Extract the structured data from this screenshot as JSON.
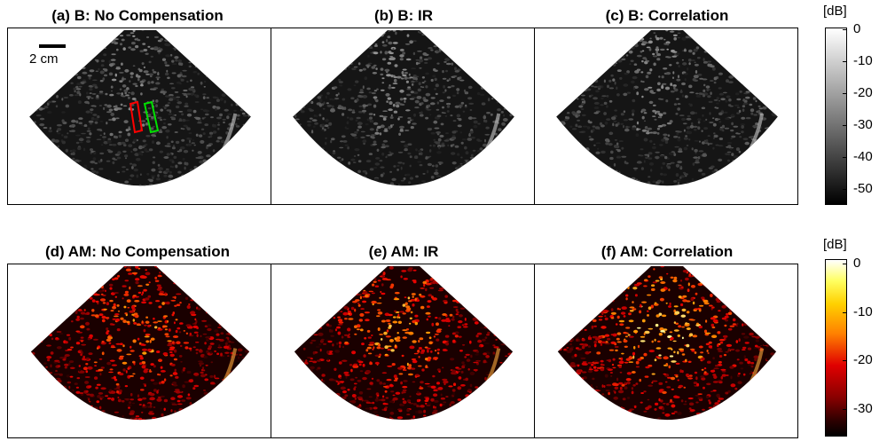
{
  "panels": [
    {
      "id": "a",
      "title": "(a) B: No Compensation",
      "mode": "B"
    },
    {
      "id": "b",
      "title": "(b) B: IR",
      "mode": "B"
    },
    {
      "id": "c",
      "title": "(c) B: Correlation",
      "mode": "B"
    },
    {
      "id": "d",
      "title": "(d) AM: No Compensation",
      "mode": "AM"
    },
    {
      "id": "e",
      "title": "(e) AM: IR",
      "mode": "AM"
    },
    {
      "id": "f",
      "title": "(f) AM: Correlation",
      "mode": "AM"
    }
  ],
  "colorbars": {
    "b_mode": {
      "unit": "[dB]",
      "ticks": [
        "0",
        "-10",
        "-20",
        "-30",
        "-40",
        "-50"
      ],
      "colormap": "gray"
    },
    "am_mode": {
      "unit": "[dB]",
      "ticks": [
        "0",
        "-10",
        "-20",
        "-30"
      ],
      "colormap": "hot"
    }
  },
  "scale_bar": {
    "label": "2 cm"
  },
  "roi_boxes": [
    {
      "color": "#ff0000"
    },
    {
      "color": "#00e000"
    }
  ]
}
